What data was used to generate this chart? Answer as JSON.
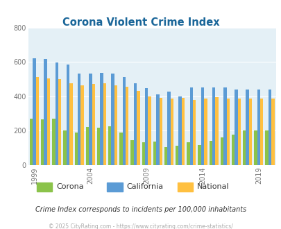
{
  "title": "Corona Violent Crime Index",
  "subtitle": "Crime Index corresponds to incidents per 100,000 inhabitants",
  "footer": "© 2025 CityRating.com - https://www.cityrating.com/crime-statistics/",
  "years": [
    1999,
    2000,
    2001,
    2002,
    2003,
    2004,
    2005,
    2006,
    2007,
    2008,
    2009,
    2010,
    2011,
    2012,
    2013,
    2014,
    2015,
    2016,
    2017,
    2018,
    2019,
    2020
  ],
  "corona": [
    270,
    265,
    270,
    200,
    190,
    220,
    215,
    225,
    190,
    145,
    130,
    135,
    105,
    110,
    130,
    115,
    140,
    160,
    175,
    200,
    200,
    200
  ],
  "california": [
    620,
    615,
    595,
    585,
    530,
    530,
    535,
    530,
    510,
    475,
    445,
    410,
    425,
    400,
    450,
    450,
    450,
    450,
    440,
    440,
    440,
    440
  ],
  "national": [
    510,
    505,
    500,
    475,
    465,
    470,
    475,
    465,
    455,
    430,
    400,
    390,
    385,
    390,
    380,
    385,
    395,
    385,
    385,
    385,
    385,
    385
  ],
  "corona_color": "#8bc34a",
  "california_color": "#5b9bd5",
  "national_color": "#ffc040",
  "plot_bg": "#e4f0f6",
  "ylim": [
    0,
    800
  ],
  "yticks": [
    0,
    200,
    400,
    600,
    800
  ],
  "title_color": "#1a6699",
  "subtitle_color": "#333333",
  "footer_color": "#aaaaaa",
  "bar_width": 0.27
}
